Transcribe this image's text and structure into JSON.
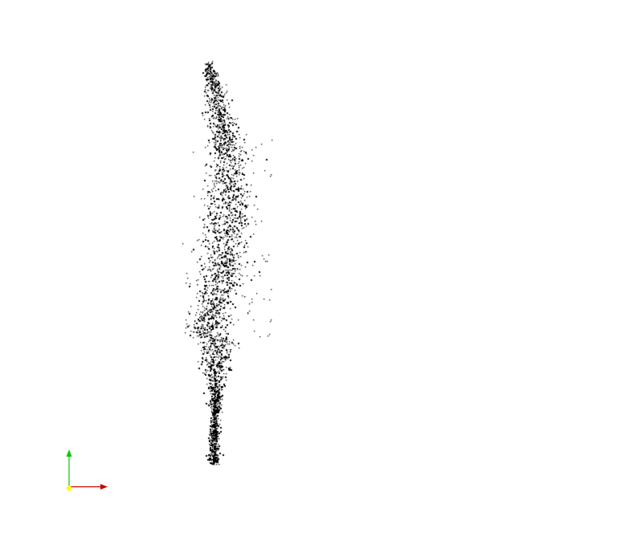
{
  "viewport": {
    "background_color": "#ffffff"
  },
  "point_cloud": {
    "point_color": "#000000",
    "point_count": 2600,
    "random_seed": 7
  },
  "axes_gizmo": {
    "x_axis_color": "#cc0000",
    "y_axis_color": "#00cc00",
    "origin_color": "#ffff00",
    "x_axis_icon": "arrow-right-icon",
    "y_axis_icon": "arrow-up-icon"
  }
}
